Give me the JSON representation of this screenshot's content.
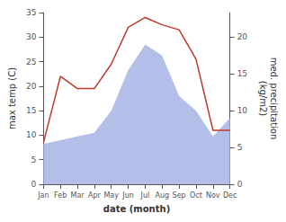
{
  "chart_data": {
    "type": "line",
    "categories": [
      "Jan",
      "Feb",
      "Mar",
      "Apr",
      "May",
      "Jun",
      "Jul",
      "Aug",
      "Sep",
      "Oct",
      "Nov",
      "Dec"
    ],
    "xlabel": "date (month)",
    "ylabel": "max temp (C)",
    "y2label": "med. precipitation\n(kg/m2)",
    "ylim": [
      0,
      35
    ],
    "yticks": [
      0,
      5,
      10,
      15,
      20,
      25,
      30,
      35
    ],
    "y2lim": [
      0,
      23.33
    ],
    "y2ticks": [
      0,
      5,
      10,
      15,
      20
    ],
    "grid": false,
    "series": [
      {
        "type": "area",
        "color": "#b3bfe8",
        "axis": "y2",
        "values": [
          5.5,
          6.0,
          6.5,
          7.0,
          10.0,
          15.5,
          19.0,
          17.5,
          12.0,
          10.0,
          6.5,
          9.0
        ]
      },
      {
        "type": "line",
        "color": "#c0392b",
        "values": [
          8.5,
          22.0,
          19.5,
          19.5,
          24.5,
          32.0,
          34.0,
          32.5,
          31.5,
          25.5,
          11.0,
          11.0
        ]
      }
    ]
  }
}
